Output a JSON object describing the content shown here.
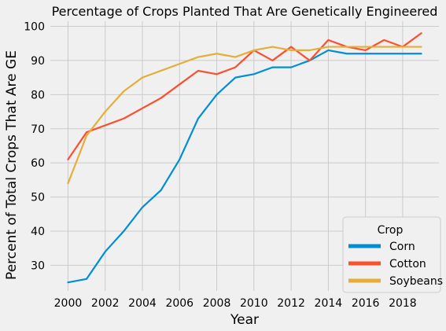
{
  "chart_data": {
    "type": "line",
    "title": "Percentage of Crops Planted That Are Genetically Engineered",
    "xlabel": "Year",
    "ylabel": "Percent of Total Crops That Are GE",
    "x": [
      2000,
      2001,
      2002,
      2003,
      2004,
      2005,
      2006,
      2007,
      2008,
      2009,
      2010,
      2011,
      2012,
      2013,
      2014,
      2015,
      2016,
      2017,
      2018,
      2019
    ],
    "xlim": [
      1999.05,
      2019.95
    ],
    "ylim": [
      22.5,
      101.5
    ],
    "xticks": [
      2000,
      2002,
      2004,
      2006,
      2008,
      2010,
      2012,
      2014,
      2016,
      2018
    ],
    "yticks": [
      30,
      40,
      50,
      60,
      70,
      80,
      90,
      100
    ],
    "grid": true,
    "legend": {
      "title": "Crop",
      "placement": "lower-right"
    },
    "series": [
      {
        "name": "Corn",
        "color": "#008fd5",
        "values": [
          25,
          26,
          34,
          40,
          47,
          52,
          61,
          73,
          80,
          85,
          86,
          88,
          88,
          90,
          93,
          92,
          92,
          92,
          92,
          92
        ]
      },
      {
        "name": "Cotton",
        "color": "#fc4f30",
        "values": [
          61,
          69,
          71,
          73,
          76,
          79,
          83,
          87,
          86,
          88,
          93,
          90,
          94,
          90,
          96,
          94,
          93,
          96,
          94,
          98
        ]
      },
      {
        "name": "Soybeans",
        "color": "#e5ae38",
        "values": [
          54,
          68,
          75,
          81,
          85,
          87,
          89,
          91,
          92,
          91,
          93,
          94,
          93,
          93,
          94,
          94,
          94,
          94,
          94,
          94
        ]
      }
    ]
  }
}
